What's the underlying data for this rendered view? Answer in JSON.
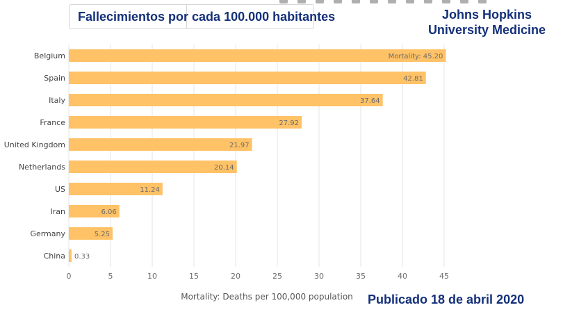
{
  "header": {
    "title": "Fallecimientos por cada 100.000 habitantes",
    "brand_line1": "Johns Hopkins",
    "brand_line2": "University Medicine"
  },
  "footer": {
    "published": "Publicado 18 de abril 2020"
  },
  "chart_data": {
    "type": "bar",
    "orientation": "horizontal",
    "title": "Fallecimientos por cada 100.000 habitantes",
    "xlabel": "Mortality: Deaths per 100,000 population",
    "ylabel": "",
    "categories": [
      "Belgium",
      "Spain",
      "Italy",
      "France",
      "United Kingdom",
      "Netherlands",
      "US",
      "Iran",
      "Germany",
      "China"
    ],
    "values": [
      45.2,
      42.81,
      37.64,
      27.92,
      21.97,
      20.14,
      11.24,
      6.06,
      5.25,
      0.33
    ],
    "value_labels": [
      "Mortality: 45.20",
      "42.81",
      "37.64",
      "27.92",
      "21.97",
      "20.14",
      "11.24",
      "6.06",
      "5.25",
      "0.33"
    ],
    "xlim": [
      0,
      45
    ],
    "xticks": [
      "0",
      "5",
      "10",
      "15",
      "20",
      "25",
      "30",
      "35",
      "40",
      "45"
    ],
    "grid": "vertical",
    "bar_color": "#ffc266",
    "label_color": "#6b6b6b",
    "grid_color": "#e6e6e6"
  }
}
